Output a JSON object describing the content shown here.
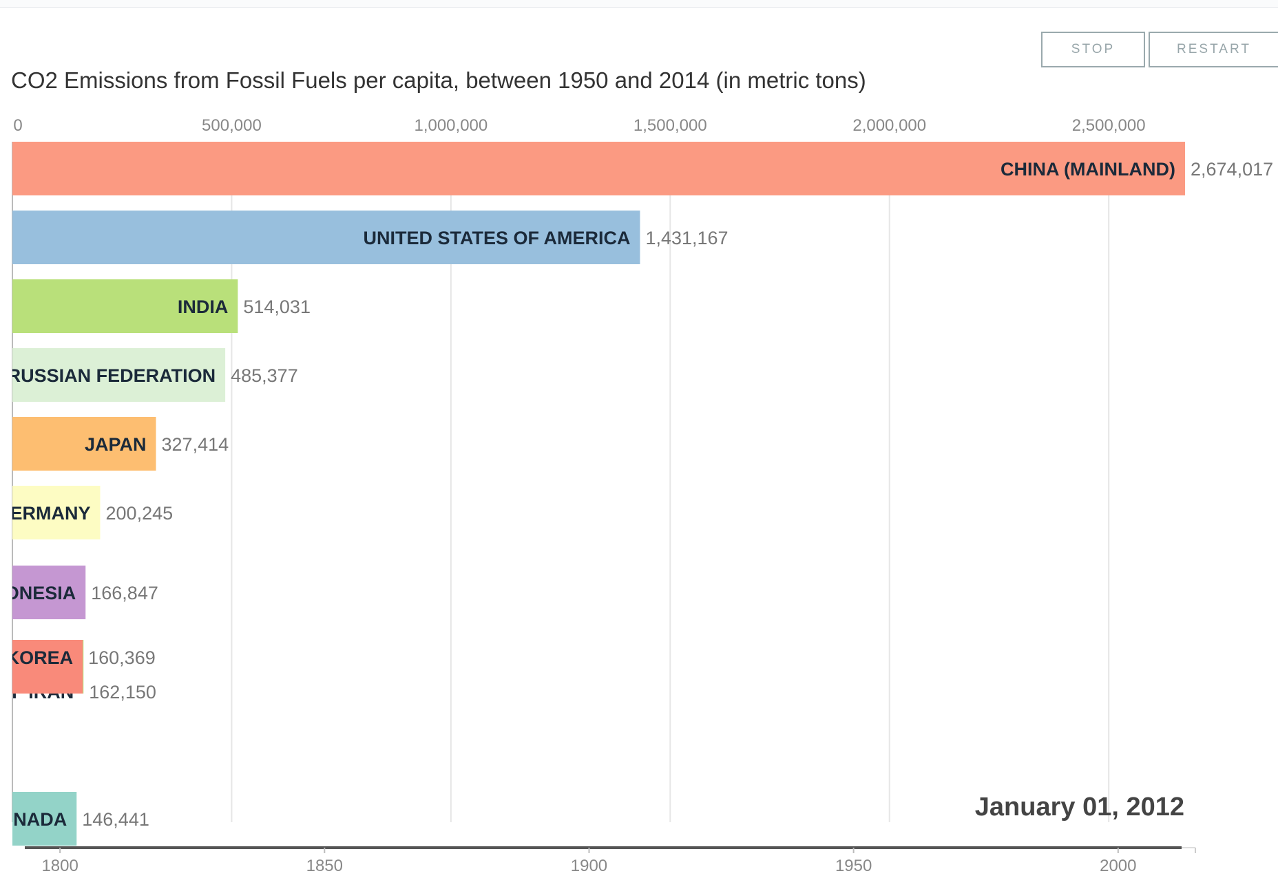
{
  "controls": {
    "stop_label": "STOP",
    "restart_label": "RESTART"
  },
  "date_label": "January 01, 2012",
  "chart_data": {
    "type": "bar",
    "orientation": "horizontal",
    "title": "CO2 Emissions from Fossil Fuels per capita, between 1950 and 2014 (in metric tons)",
    "x_ticks": [
      "0",
      "500,000",
      "1,000,000",
      "1,500,000",
      "2,000,000",
      "2,500,000"
    ],
    "x_tick_values": [
      0,
      500000,
      1000000,
      1500000,
      2000000,
      2500000
    ],
    "xlim": [
      0,
      2674017
    ],
    "grid": true,
    "bars": [
      {
        "label": "CHINA (MAINLAND)",
        "value": 2674017,
        "value_label": "2,674,017",
        "color": "#fb9a82"
      },
      {
        "label": "UNITED STATES OF AMERICA",
        "value": 1431167,
        "value_label": "1,431,167",
        "color": "#98bfdd"
      },
      {
        "label": "INDIA",
        "value": 514031,
        "value_label": "514,031",
        "color": "#b9e07a"
      },
      {
        "label": "RUSSIAN FEDERATION",
        "value": 485377,
        "value_label": "485,377",
        "color": "#dcf0d6"
      },
      {
        "label": "JAPAN",
        "value": 327414,
        "value_label": "327,414",
        "color": "#fdbe71"
      },
      {
        "label": "ERMANY",
        "value": 200245,
        "value_label": "200,245",
        "color": "#fdfcc3"
      },
      {
        "label": "ONESIA",
        "value": 166847,
        "value_label": "166,847",
        "color": "#c597d2"
      },
      {
        "label": "F IRAN",
        "value": 162150,
        "value_label": "162,150",
        "color": "#b9e07a"
      },
      {
        "label": "KOREA",
        "value": 160369,
        "value_label": "160,369",
        "color": "#f98a7a"
      },
      {
        "label": "NADA",
        "value": 146441,
        "value_label": "146,441",
        "color": "#93d3c8"
      }
    ],
    "timeline": {
      "ticks": [
        "1800",
        "1850",
        "1900",
        "1950",
        "2000"
      ],
      "tick_values": [
        1800,
        1850,
        1900,
        1950,
        2000
      ],
      "range": [
        1791,
        2012
      ]
    }
  }
}
